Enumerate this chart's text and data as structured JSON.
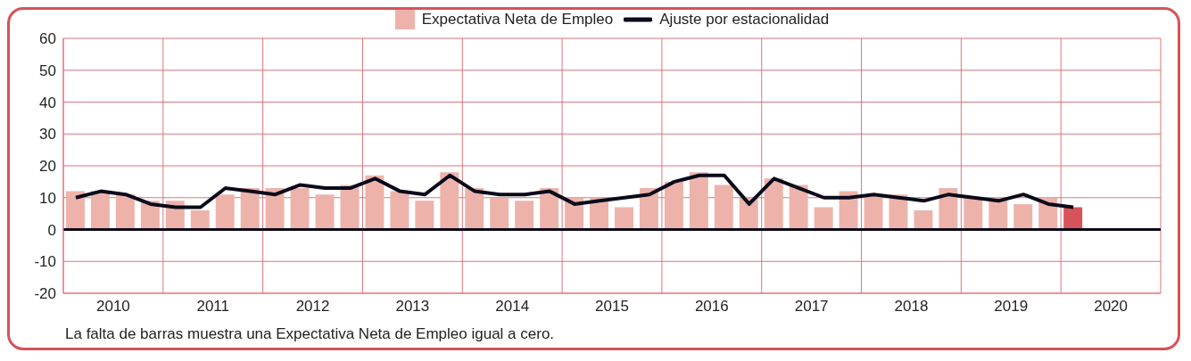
{
  "chart_data": {
    "type": "bar",
    "x": [
      2010.125,
      2010.375,
      2010.625,
      2010.875,
      2011.125,
      2011.375,
      2011.625,
      2011.875,
      2012.125,
      2012.375,
      2012.625,
      2012.875,
      2013.125,
      2013.375,
      2013.625,
      2013.875,
      2014.125,
      2014.375,
      2014.625,
      2014.875,
      2015.125,
      2015.375,
      2015.625,
      2015.875,
      2016.125,
      2016.375,
      2016.625,
      2016.875,
      2017.125,
      2017.375,
      2017.625,
      2017.875,
      2018.125,
      2018.375,
      2018.625,
      2018.875,
      2019.125,
      2019.375,
      2019.625,
      2019.875,
      2020.125
    ],
    "series": [
      {
        "name": "Expectativa Neta de Empleo",
        "color": "#edb3ab",
        "colors": [
          "#edb3ab",
          "#edb3ab",
          "#edb3ab",
          "#edb3ab",
          "#edb3ab",
          "#edb3ab",
          "#edb3ab",
          "#edb3ab",
          "#edb3ab",
          "#edb3ab",
          "#edb3ab",
          "#edb3ab",
          "#edb3ab",
          "#edb3ab",
          "#edb3ab",
          "#edb3ab",
          "#edb3ab",
          "#edb3ab",
          "#edb3ab",
          "#edb3ab",
          "#edb3ab",
          "#edb3ab",
          "#edb3ab",
          "#edb3ab",
          "#edb3ab",
          "#edb3ab",
          "#edb3ab",
          "#edb3ab",
          "#edb3ab",
          "#edb3ab",
          "#edb3ab",
          "#edb3ab",
          "#edb3ab",
          "#edb3ab",
          "#edb3ab",
          "#edb3ab",
          "#edb3ab",
          "#edb3ab",
          "#edb3ab",
          "#edb3ab",
          "#d6535a"
        ],
        "values": [
          12,
          12,
          11,
          9,
          9,
          6,
          11,
          13,
          13,
          13,
          11,
          14,
          17,
          12,
          9,
          18,
          13,
          10,
          9,
          13,
          10,
          10,
          7,
          13,
          15,
          18,
          14,
          10,
          16,
          14,
          7,
          12,
          11,
          11,
          6,
          13,
          10,
          10,
          8,
          10,
          7
        ]
      },
      {
        "name": "Ajuste por estacionalidad",
        "type": "line",
        "color": "#0a0a1a",
        "values": [
          10,
          12,
          11,
          8,
          7,
          7,
          13,
          12,
          11,
          14,
          13,
          13,
          16,
          12,
          11,
          17,
          12,
          11,
          11,
          12,
          8,
          9,
          10,
          11,
          15,
          17,
          17,
          8,
          16,
          13,
          10,
          10,
          11,
          10,
          9,
          11,
          10,
          9,
          11,
          8,
          7
        ]
      }
    ],
    "xlim": [
      2010,
      2021
    ],
    "xticks": [
      {
        "value": 2010,
        "label": null
      },
      {
        "value": 2010.5,
        "label": "2010"
      },
      {
        "value": 2011,
        "label": null
      },
      {
        "value": 2011.5,
        "label": "2011"
      },
      {
        "value": 2012,
        "label": null
      },
      {
        "value": 2012.5,
        "label": "2012"
      },
      {
        "value": 2013,
        "label": null
      },
      {
        "value": 2013.5,
        "label": "2013"
      },
      {
        "value": 2014,
        "label": null
      },
      {
        "value": 2014.5,
        "label": "2014"
      },
      {
        "value": 2015,
        "label": null
      },
      {
        "value": 2015.5,
        "label": "2015"
      },
      {
        "value": 2016,
        "label": null
      },
      {
        "value": 2016.5,
        "label": "2016"
      },
      {
        "value": 2017,
        "label": null
      },
      {
        "value": 2017.5,
        "label": "2017"
      },
      {
        "value": 2018,
        "label": null
      },
      {
        "value": 2018.5,
        "label": "2018"
      },
      {
        "value": 2019,
        "label": null
      },
      {
        "value": 2019.5,
        "label": "2019"
      },
      {
        "value": 2020,
        "label": null
      },
      {
        "value": 2020.5,
        "label": "2020"
      },
      {
        "value": 2021,
        "label": null
      }
    ],
    "ylim": [
      -20,
      60
    ],
    "yticks": [
      -20,
      -10,
      0,
      10,
      20,
      30,
      40,
      50,
      60
    ],
    "grid": true,
    "legend": "top",
    "marker": "none",
    "ref_lines": [
      {
        "axis": "y",
        "value": 0,
        "color": "#0a0a1a"
      }
    ],
    "annotations": [
      "La falta de barras muestra una Expectativa Neta de Empleo igual a cero."
    ]
  }
}
